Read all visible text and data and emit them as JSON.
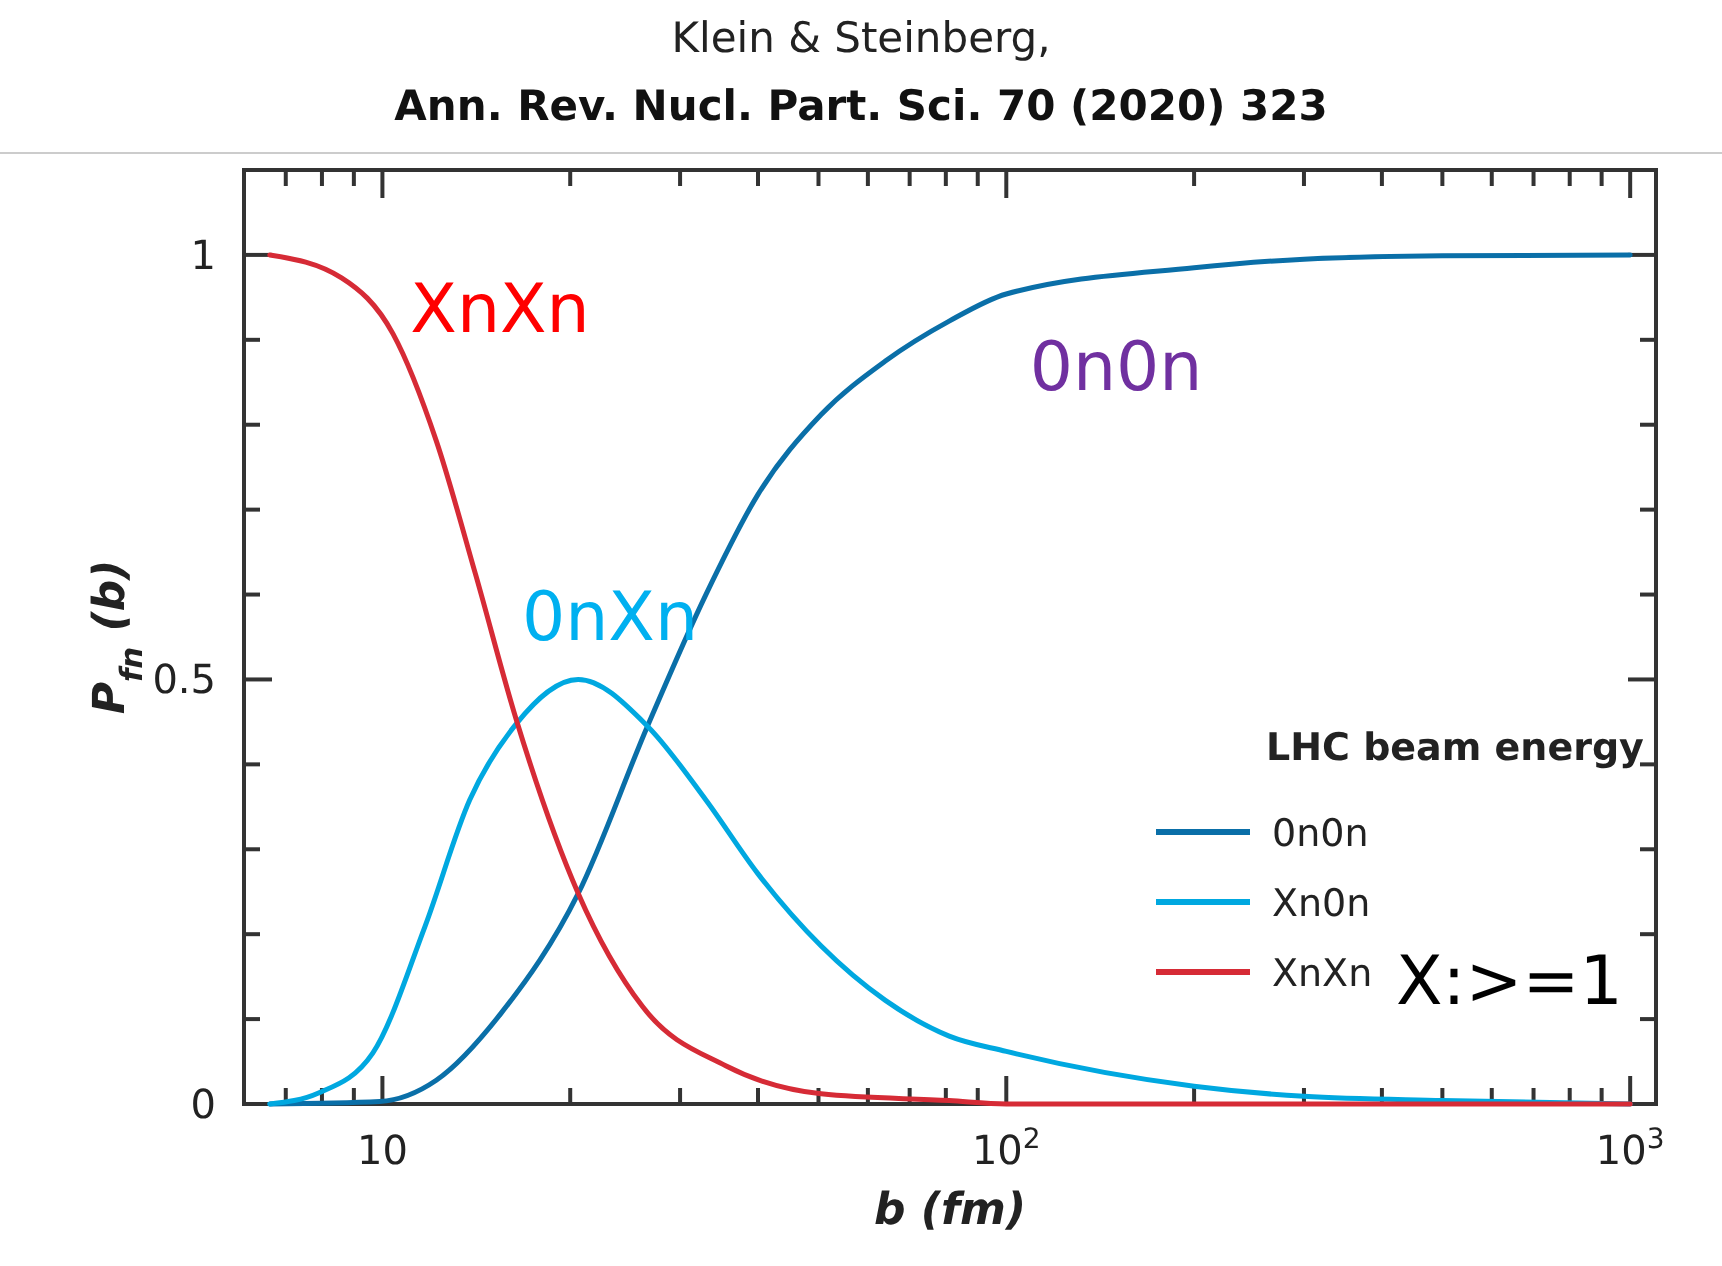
{
  "chart_data": {
    "type": "line",
    "title": "Klein & Steinberg,",
    "subtitle": "Ann. Rev. Nucl. Part. Sci. 70 (2020) 323",
    "xlabel": "b (fm)",
    "ylabel": "P$_{fn}$ (b)",
    "legend_title": "LHC beam energy",
    "log": "x",
    "grid": false,
    "legend": "bottom right",
    "line_style": "solid",
    "marker": "none",
    "xlim": [
      6,
      1100
    ],
    "ylim": [
      0,
      1.1
    ],
    "xticks": [
      {
        "value": 7,
        "label": null
      },
      {
        "value": 8,
        "label": null
      },
      {
        "value": 9,
        "label": null
      },
      10,
      {
        "value": 20,
        "label": null
      },
      {
        "value": 30,
        "label": null
      },
      {
        "value": 40,
        "label": null
      },
      {
        "value": 50,
        "label": null
      },
      {
        "value": 60,
        "label": null
      },
      {
        "value": 70,
        "label": null
      },
      {
        "value": 80,
        "label": null
      },
      {
        "value": 90,
        "label": null
      },
      {
        "value": 100,
        "label": "10$^{2}$"
      },
      {
        "value": 200,
        "label": null
      },
      {
        "value": 300,
        "label": null
      },
      {
        "value": 400,
        "label": null
      },
      {
        "value": 500,
        "label": null
      },
      {
        "value": 600,
        "label": null
      },
      {
        "value": 700,
        "label": null
      },
      {
        "value": 800,
        "label": null
      },
      {
        "value": 900,
        "label": null
      },
      {
        "value": 1000,
        "label": "10$^{3}$"
      }
    ],
    "yticks": [
      0,
      {
        "value": 0.1,
        "label": null
      },
      {
        "value": 0.2,
        "label": null
      },
      {
        "value": 0.3,
        "label": null
      },
      {
        "value": 0.4,
        "label": null
      },
      0.5,
      {
        "value": 0.6,
        "label": null
      },
      {
        "value": 0.7,
        "label": null
      },
      {
        "value": 0.8,
        "label": null
      },
      {
        "value": 0.9,
        "label": null
      },
      1
    ],
    "series": [
      {
        "name": "0n0n",
        "color": "#0a6fa8",
        "x": [
          6.6,
          9.9,
          12.2,
          15.5,
          20.6,
          26.6,
          33,
          40,
          50.5,
          64,
          81,
          100,
          200,
          300,
          500,
          1000
        ],
        "values": [
          0,
          0.003,
          0.028,
          0.107,
          0.248,
          0.445,
          0.6,
          0.718,
          0.812,
          0.875,
          0.922,
          0.954,
          0.985,
          0.995,
          0.999,
          1
        ]
      },
      {
        "name": "Xn0n",
        "color": "#00a8e0",
        "x": [
          6.6,
          7.9,
          9.65,
          11.7,
          13.8,
          16.4,
          20.6,
          26.6,
          33,
          40,
          50.5,
          64,
          81,
          100,
          200,
          300,
          500,
          1000
        ],
        "values": [
          0,
          0.013,
          0.06,
          0.209,
          0.358,
          0.448,
          0.5,
          0.445,
          0.358,
          0.271,
          0.186,
          0.122,
          0.08,
          0.062,
          0.021,
          0.009,
          0.004,
          0
        ]
      },
      {
        "name": "XnXn",
        "color": "#d62b36",
        "x": [
          6.6,
          8.6,
          10.4,
          12.2,
          14.1,
          16.4,
          20.6,
          26.1,
          35.5,
          50.5,
          81,
          100,
          1000
        ],
        "values": [
          1,
          0.973,
          0.907,
          0.781,
          0.624,
          0.452,
          0.248,
          0.115,
          0.045,
          0.012,
          0.004,
          0,
          0
        ]
      }
    ],
    "annotations": [
      "XnXn",
      "0nXn",
      "0n0n",
      "X:>=1"
    ]
  }
}
